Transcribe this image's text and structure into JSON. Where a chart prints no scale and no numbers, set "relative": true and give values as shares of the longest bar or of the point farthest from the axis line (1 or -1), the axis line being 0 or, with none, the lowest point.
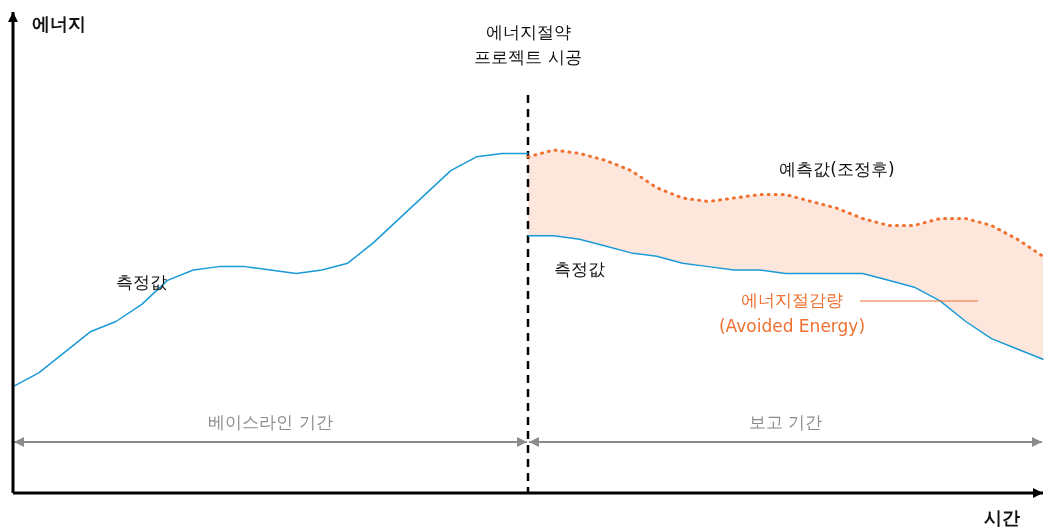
{
  "chart_data": {
    "type": "line",
    "relative": true,
    "xlabel": "시간",
    "categories": [
      null,
      null,
      null,
      null,
      null,
      null,
      null,
      null,
      null,
      null,
      null,
      null,
      null,
      null,
      null,
      null,
      null,
      null,
      null,
      null,
      null,
      null,
      null,
      null,
      null,
      null,
      null,
      null,
      null,
      null,
      null,
      null,
      null,
      null,
      null,
      null,
      null,
      null,
      null,
      null,
      null
    ],
    "series": [
      {
        "name": "측정값",
        "color": "#1a9ad6",
        "line_style": "solid",
        "values": [
          0.31,
          0.35,
          0.41,
          0.47,
          0.5,
          0.55,
          0.62,
          0.65,
          0.66,
          0.66,
          0.65,
          0.64,
          0.65,
          0.67,
          0.73,
          0.8,
          0.87,
          0.94,
          0.98,
          0.99,
          0.99,
          null,
          null,
          null,
          null,
          null,
          null,
          null,
          null,
          null,
          null,
          null,
          null,
          null,
          null,
          null,
          null,
          null,
          null,
          null,
          null
        ]
      },
      {
        "name": "측정값",
        "color": "#1a9ad6",
        "line_style": "solid",
        "values": [
          null,
          null,
          null,
          null,
          null,
          null,
          null,
          null,
          null,
          null,
          null,
          null,
          null,
          null,
          null,
          null,
          null,
          null,
          null,
          null,
          0.75,
          0.75,
          0.74,
          0.72,
          0.7,
          0.69,
          0.67,
          0.66,
          0.65,
          0.65,
          0.64,
          0.64,
          0.64,
          0.64,
          0.62,
          0.6,
          0.56,
          0.5,
          0.45,
          0.42,
          0.39
        ]
      },
      {
        "name": "예측값(조정후)",
        "color": "#f07030",
        "line_style": "dotted",
        "values": [
          null,
          null,
          null,
          null,
          null,
          null,
          null,
          null,
          null,
          null,
          null,
          null,
          null,
          null,
          null,
          null,
          null,
          null,
          null,
          null,
          0.98,
          1.0,
          0.99,
          0.97,
          0.94,
          0.89,
          0.86,
          0.85,
          0.86,
          0.87,
          0.87,
          0.85,
          0.83,
          0.8,
          0.78,
          0.78,
          0.8,
          0.8,
          0.78,
          0.74,
          0.69
        ],
        "lower": [
          null,
          null,
          null,
          null,
          null,
          null,
          null,
          null,
          null,
          null,
          null,
          null,
          null,
          null,
          null,
          null,
          null,
          null,
          null,
          null,
          0.75,
          0.75,
          0.74,
          0.72,
          0.7,
          0.69,
          0.67,
          0.66,
          0.65,
          0.65,
          0.64,
          0.64,
          0.64,
          0.64,
          0.62,
          0.6,
          0.56,
          0.5,
          0.45,
          0.42,
          0.39
        ],
        "upper": [
          null,
          null,
          null,
          null,
          null,
          null,
          null,
          null,
          null,
          null,
          null,
          null,
          null,
          null,
          null,
          null,
          null,
          null,
          null,
          null,
          0.98,
          1.0,
          0.99,
          0.97,
          0.94,
          0.89,
          0.86,
          0.85,
          0.86,
          0.87,
          0.87,
          0.85,
          0.83,
          0.8,
          0.78,
          0.78,
          0.8,
          0.8,
          0.78,
          0.74,
          0.69
        ]
      }
    ],
    "annotations": [
      "에너지",
      "에너지절약 프로젝트 시공",
      "베이스라인 기간",
      "보고 기간",
      "에너지절감량 (Avoided Energy)"
    ]
  }
}
